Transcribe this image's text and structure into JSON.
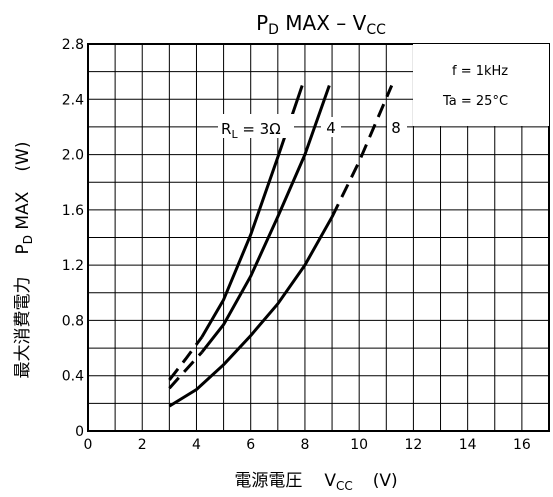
{
  "chart_data": {
    "type": "line",
    "title": {
      "main": "P",
      "main_sub": "D",
      "main_mid": " MAX  –  V",
      "main_sub2": "CC"
    },
    "ylabel": {
      "jp": "最大消費電力",
      "main": "P",
      "main_sub": "D",
      "main_tail": " MAX",
      "unit": "(W)"
    },
    "xlabel": {
      "jp": "電源電圧",
      "main": "V",
      "main_sub": "CC",
      "unit": "(V)"
    },
    "xlim": [
      0,
      17
    ],
    "ylim": [
      0,
      2.8
    ],
    "x_ticks": [
      0,
      2,
      4,
      6,
      8,
      10,
      12,
      14,
      16
    ],
    "y_ticks": [
      0,
      0.4,
      0.8,
      1.2,
      1.6,
      2.0,
      2.4,
      2.8
    ],
    "x_tick_labels": [
      "0",
      "2",
      "4",
      "6",
      "8",
      "10",
      "12",
      "14",
      "16"
    ],
    "y_tick_labels": [
      "0",
      "0.4",
      "0.8",
      "1.2",
      "1.6",
      "2.0",
      "2.4",
      "2.8"
    ],
    "grid": true,
    "legend_box": {
      "line1": "f = 1kHz",
      "line2": "Ta = 25°C"
    },
    "series": [
      {
        "name": "R_L = 3Ω",
        "label_main": "R",
        "label_sub": "L",
        "label_tail": " = 3Ω",
        "dashed": [
          [
            3.0,
            0.37
          ],
          [
            3.6,
            0.52
          ],
          [
            4.2,
            0.68
          ]
        ],
        "solid": [
          [
            4.2,
            0.68
          ],
          [
            5.0,
            0.95
          ],
          [
            6.0,
            1.42
          ],
          [
            7.0,
            1.98
          ],
          [
            7.9,
            2.5
          ]
        ]
      },
      {
        "name": "4",
        "label": "4",
        "dashed": [
          [
            3.0,
            0.31
          ],
          [
            3.6,
            0.44
          ],
          [
            4.2,
            0.57
          ]
        ],
        "solid": [
          [
            4.2,
            0.57
          ],
          [
            5.0,
            0.77
          ],
          [
            6.0,
            1.12
          ],
          [
            7.0,
            1.55
          ],
          [
            8.0,
            2.0
          ],
          [
            8.9,
            2.5
          ]
        ]
      },
      {
        "name": "8",
        "label": "8",
        "solid": [
          [
            3.0,
            0.18
          ],
          [
            4.0,
            0.3
          ],
          [
            5.0,
            0.48
          ],
          [
            6.0,
            0.69
          ],
          [
            7.0,
            0.92
          ],
          [
            8.0,
            1.2
          ],
          [
            9.0,
            1.55
          ]
        ],
        "dashed": [
          [
            9.0,
            1.55
          ],
          [
            10.0,
            1.95
          ],
          [
            11.2,
            2.5
          ]
        ]
      }
    ]
  }
}
